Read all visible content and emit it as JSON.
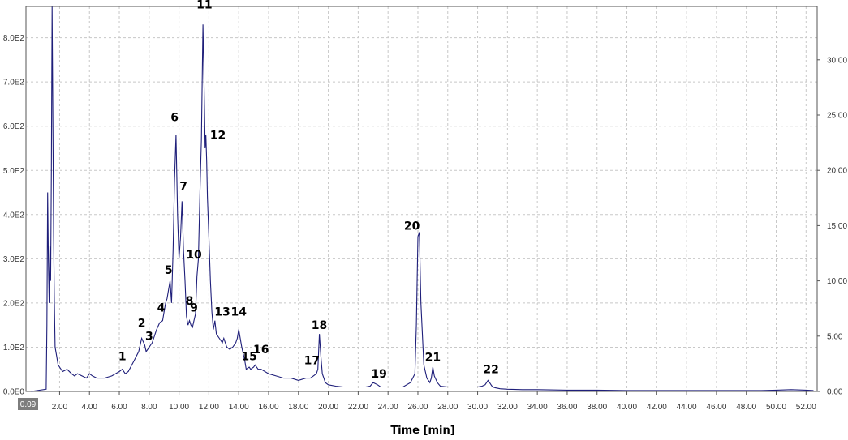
{
  "chart_data": {
    "type": "line",
    "title": "",
    "xlabel": "Time [min]",
    "ylabel": "",
    "xlim": [
      0.09,
      53.6
    ],
    "ylim": [
      0,
      8.7
    ],
    "y2lim": [
      0,
      34.8
    ],
    "grid": true,
    "start_label": "0.09",
    "x_ticks": [
      "2.00",
      "4.00",
      "6.00",
      "8.00",
      "10.00",
      "12.00",
      "14.00",
      "16.00",
      "18.00",
      "20.00",
      "22.00",
      "24.00",
      "26.00",
      "28.00",
      "30.00",
      "32.00",
      "34.00",
      "36.00",
      "38.00",
      "40.00",
      "42.00",
      "44.00",
      "46.00",
      "48.00",
      "50.00",
      "52.00"
    ],
    "y_ticks": [
      "0.0E0",
      "1.0E2",
      "2.0E2",
      "3.0E2",
      "4.0E2",
      "5.0E2",
      "6.0E2",
      "7.0E2",
      "8.0E2"
    ],
    "y2_ticks": [
      "0.00",
      "5.00",
      "10.00",
      "15.00",
      "20.00",
      "25.00",
      "30.00"
    ],
    "line_color": "#1f1f7a",
    "series": [
      {
        "x": [
          0.09,
          1.1,
          1.15,
          1.2,
          1.25,
          1.3,
          1.35,
          1.4,
          1.45,
          1.5,
          1.55,
          1.6,
          1.65,
          1.7,
          1.8,
          1.9,
          2.0,
          2.2,
          2.5,
          2.8,
          3.0,
          3.2,
          3.5,
          3.8,
          4.0,
          4.2,
          4.5,
          5.0,
          5.5,
          6.0,
          6.2,
          6.4,
          6.6,
          7.0,
          7.3,
          7.5,
          7.7,
          7.8,
          7.9,
          8.0,
          8.2,
          8.5,
          8.7,
          8.9,
          9.0,
          9.1,
          9.2,
          9.3,
          9.4,
          9.5,
          9.6,
          9.7,
          9.8,
          9.9,
          10.0,
          10.1,
          10.2,
          10.3,
          10.4,
          10.5,
          10.6,
          10.7,
          10.8,
          10.9,
          11.0,
          11.1,
          11.2,
          11.3,
          11.4,
          11.5,
          11.6,
          11.7,
          11.75,
          11.8,
          11.85,
          11.9,
          12.0,
          12.1,
          12.2,
          12.3,
          12.4,
          12.5,
          12.7,
          12.9,
          13.0,
          13.2,
          13.4,
          13.6,
          13.8,
          13.9,
          14.0,
          14.2,
          14.4,
          14.5,
          14.7,
          14.8,
          15.0,
          15.1,
          15.3,
          15.5,
          16.0,
          16.5,
          17.0,
          17.5,
          18.0,
          18.5,
          18.8,
          19.0,
          19.2,
          19.3,
          19.4,
          19.5,
          19.6,
          19.7,
          19.8,
          20.0,
          20.5,
          21.0,
          21.5,
          22.0,
          22.5,
          22.8,
          23.0,
          23.3,
          23.5,
          24.0,
          24.5,
          25.0,
          25.5,
          25.8,
          25.9,
          26.0,
          26.1,
          26.2,
          26.4,
          26.6,
          26.8,
          26.9,
          27.0,
          27.1,
          27.3,
          27.5,
          28.0,
          28.5,
          29.0,
          29.5,
          29.8,
          30.0,
          30.3,
          30.5,
          30.7,
          30.8,
          30.9,
          31.0,
          31.2,
          31.5,
          32.0,
          33.0,
          34.0,
          36.0,
          38.0,
          40.0,
          42.0,
          44.0,
          46.0,
          48.0,
          49.0,
          50.0,
          51.0,
          52.0,
          52.5
        ],
        "values": [
          0,
          0.05,
          1.5,
          4.5,
          3.0,
          2.0,
          3.3,
          2.5,
          5.0,
          8.7,
          6.0,
          3.5,
          2.0,
          1.0,
          0.8,
          0.6,
          0.55,
          0.45,
          0.5,
          0.4,
          0.35,
          0.4,
          0.35,
          0.3,
          0.4,
          0.35,
          0.3,
          0.3,
          0.35,
          0.45,
          0.5,
          0.4,
          0.45,
          0.7,
          0.9,
          1.2,
          1.05,
          0.9,
          0.95,
          1.0,
          1.1,
          1.4,
          1.55,
          1.6,
          1.8,
          2.0,
          2.1,
          2.3,
          2.5,
          2.0,
          3.2,
          4.8,
          5.8,
          4.0,
          3.0,
          3.5,
          4.3,
          3.2,
          2.5,
          1.7,
          1.5,
          1.6,
          1.5,
          1.45,
          1.6,
          1.75,
          2.6,
          3.0,
          4.5,
          5.7,
          8.3,
          6.5,
          5.5,
          5.8,
          5.2,
          4.4,
          3.5,
          2.5,
          1.8,
          1.4,
          1.6,
          1.3,
          1.2,
          1.1,
          1.2,
          1.0,
          0.95,
          1.0,
          1.1,
          1.2,
          1.4,
          1.0,
          0.7,
          0.5,
          0.55,
          0.5,
          0.55,
          0.6,
          0.5,
          0.5,
          0.4,
          0.35,
          0.3,
          0.3,
          0.25,
          0.3,
          0.3,
          0.35,
          0.4,
          0.5,
          1.3,
          0.8,
          0.4,
          0.3,
          0.2,
          0.15,
          0.12,
          0.1,
          0.1,
          0.1,
          0.1,
          0.12,
          0.2,
          0.15,
          0.1,
          0.1,
          0.1,
          0.1,
          0.2,
          0.4,
          1.5,
          3.5,
          3.6,
          2.0,
          0.6,
          0.3,
          0.2,
          0.3,
          0.55,
          0.35,
          0.2,
          0.12,
          0.1,
          0.1,
          0.1,
          0.1,
          0.1,
          0.1,
          0.12,
          0.15,
          0.25,
          0.2,
          0.15,
          0.1,
          0.08,
          0.06,
          0.05,
          0.04,
          0.04,
          0.03,
          0.03,
          0.02,
          0.02,
          0.02,
          0.02,
          0.02,
          0.02,
          0.03,
          0.04,
          0.03,
          0.02
        ]
      }
    ],
    "peaks": [
      {
        "label": "1",
        "x": 6.2,
        "y": 0.6
      },
      {
        "label": "2",
        "x": 7.5,
        "y": 1.35
      },
      {
        "label": "3",
        "x": 8.0,
        "y": 1.05
      },
      {
        "label": "4",
        "x": 8.8,
        "y": 1.7
      },
      {
        "label": "5",
        "x": 9.3,
        "y": 2.55
      },
      {
        "label": "6",
        "x": 9.7,
        "y": 6.0
      },
      {
        "label": "7",
        "x": 10.3,
        "y": 4.45
      },
      {
        "label": "8",
        "x": 10.7,
        "y": 1.85
      },
      {
        "label": "9",
        "x": 11.0,
        "y": 1.7
      },
      {
        "label": "10",
        "x": 11.0,
        "y": 2.9
      },
      {
        "label": "11",
        "x": 11.7,
        "y": 8.55
      },
      {
        "label": "12",
        "x": 12.6,
        "y": 5.6
      },
      {
        "label": "13",
        "x": 12.9,
        "y": 1.6
      },
      {
        "label": "14",
        "x": 14.0,
        "y": 1.6
      },
      {
        "label": "15",
        "x": 14.7,
        "y": 0.6
      },
      {
        "label": "16",
        "x": 15.5,
        "y": 0.75
      },
      {
        "label": "17",
        "x": 18.9,
        "y": 0.5
      },
      {
        "label": "18",
        "x": 19.4,
        "y": 1.3
      },
      {
        "label": "19",
        "x": 23.4,
        "y": 0.2
      },
      {
        "label": "20",
        "x": 25.6,
        "y": 3.55
      },
      {
        "label": "21",
        "x": 27.0,
        "y": 0.58
      },
      {
        "label": "22",
        "x": 30.9,
        "y": 0.3
      }
    ]
  }
}
